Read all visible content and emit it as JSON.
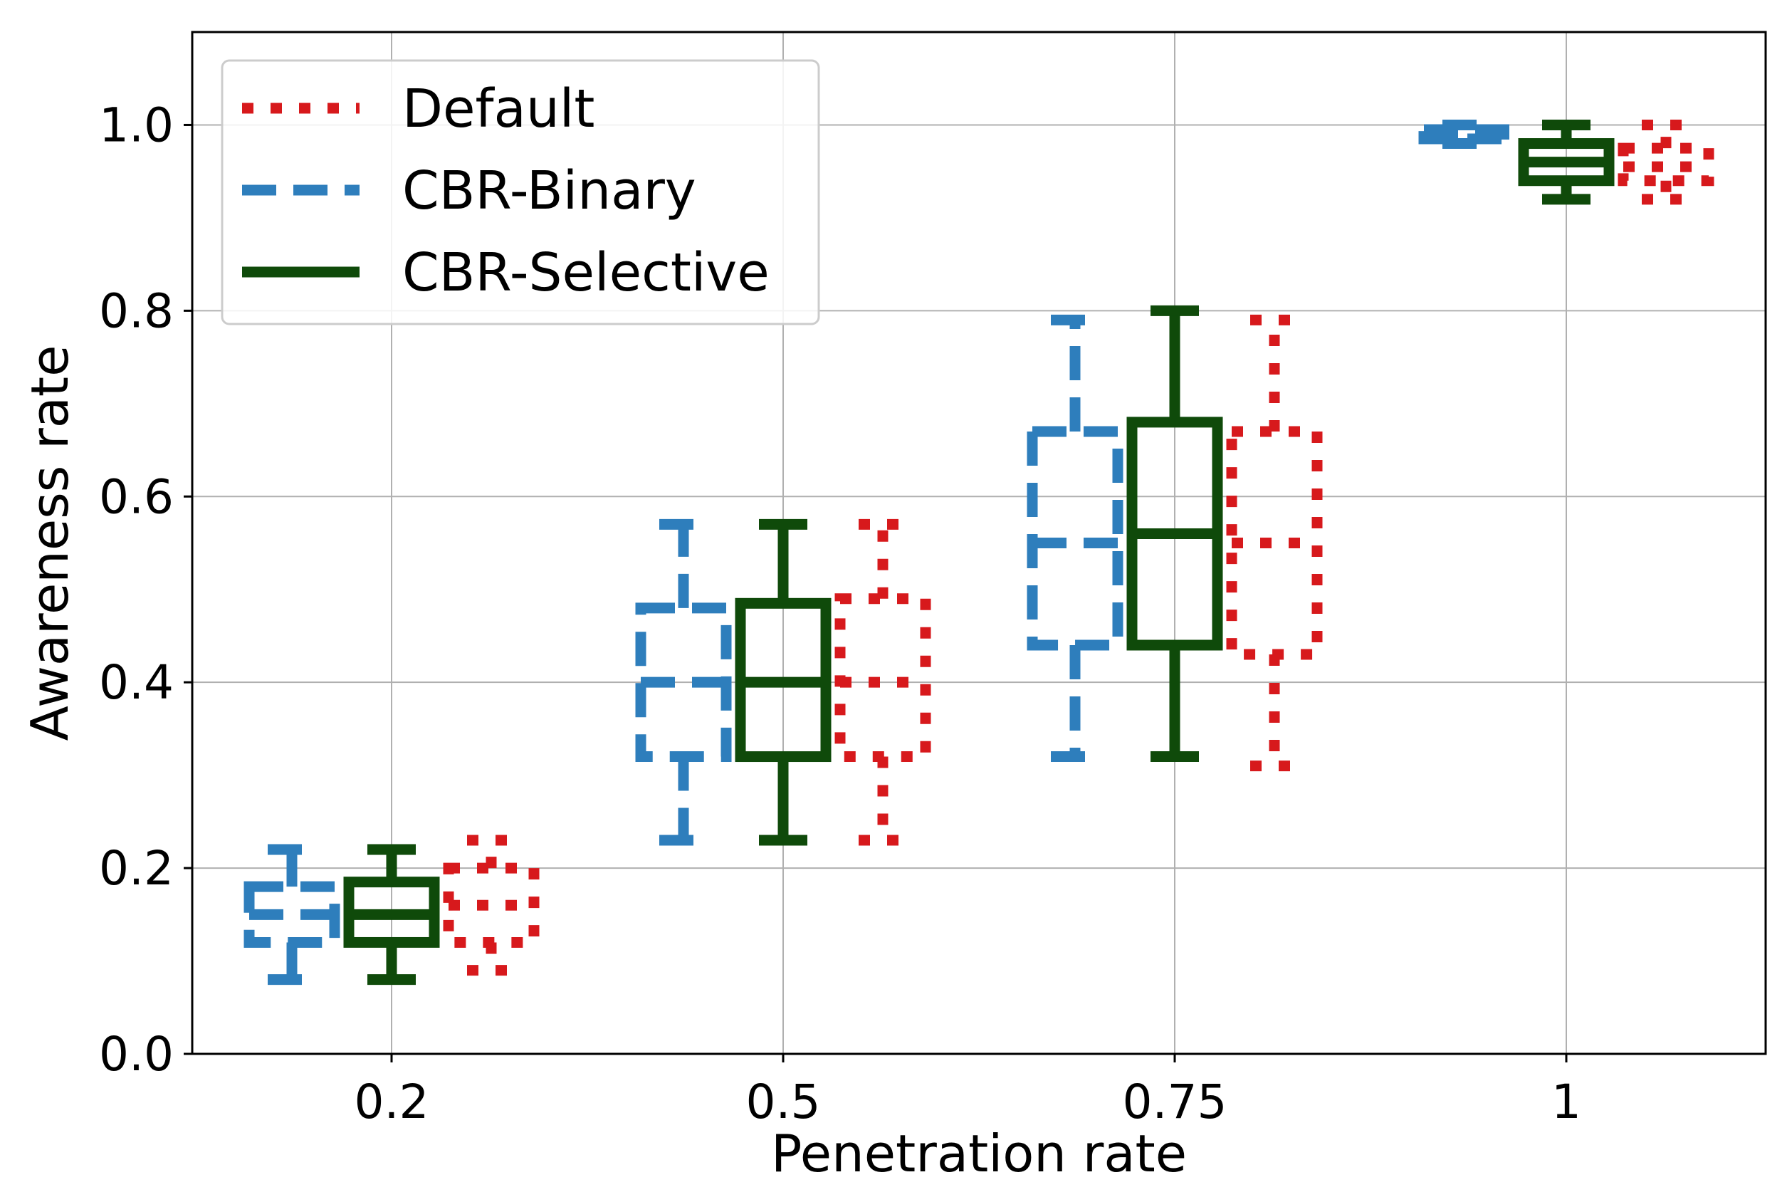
{
  "chart_data": {
    "type": "boxplot",
    "xlabel": "Penetration rate",
    "ylabel": "Awareness rate",
    "categories": [
      "0.2",
      "0.5",
      "0.75",
      "1"
    ],
    "ylim": [
      0.0,
      1.1
    ],
    "yticks": [
      "0.0",
      "0.2",
      "0.4",
      "0.6",
      "0.8",
      "1.0"
    ],
    "ytick_values": [
      0.0,
      0.2,
      0.4,
      0.6,
      0.8,
      1.0
    ],
    "grid": true,
    "legend_position": "top-left",
    "series": [
      {
        "name": "CBR-Binary",
        "color": "#2e7ebc",
        "style": "dashed",
        "boxes": [
          {
            "category": "0.2",
            "whislo": 0.08,
            "q1": 0.12,
            "median": 0.15,
            "q3": 0.18,
            "whishi": 0.22
          },
          {
            "category": "0.5",
            "whislo": 0.23,
            "q1": 0.32,
            "median": 0.4,
            "q3": 0.48,
            "whishi": 0.57
          },
          {
            "category": "0.75",
            "whislo": 0.32,
            "q1": 0.44,
            "median": 0.55,
            "q3": 0.67,
            "whishi": 0.79
          },
          {
            "category": "1",
            "whislo": 0.98,
            "q1": 0.985,
            "median": 0.99,
            "q3": 0.995,
            "whishi": 1.0
          }
        ]
      },
      {
        "name": "CBR-Selective",
        "color": "#0f4a0a",
        "style": "solid",
        "boxes": [
          {
            "category": "0.2",
            "whislo": 0.08,
            "q1": 0.12,
            "median": 0.15,
            "q3": 0.185,
            "whishi": 0.22
          },
          {
            "category": "0.5",
            "whislo": 0.23,
            "q1": 0.32,
            "median": 0.4,
            "q3": 0.485,
            "whishi": 0.57
          },
          {
            "category": "0.75",
            "whislo": 0.32,
            "q1": 0.44,
            "median": 0.56,
            "q3": 0.68,
            "whishi": 0.8
          },
          {
            "category": "1",
            "whislo": 0.92,
            "q1": 0.94,
            "median": 0.96,
            "q3": 0.98,
            "whishi": 1.0
          }
        ]
      },
      {
        "name": "Default",
        "color": "#d7191c",
        "style": "dotted",
        "boxes": [
          {
            "category": "0.2",
            "whislo": 0.09,
            "q1": 0.12,
            "median": 0.16,
            "q3": 0.2,
            "whishi": 0.23
          },
          {
            "category": "0.5",
            "whislo": 0.23,
            "q1": 0.32,
            "median": 0.4,
            "q3": 0.49,
            "whishi": 0.57
          },
          {
            "category": "0.75",
            "whislo": 0.31,
            "q1": 0.43,
            "median": 0.55,
            "q3": 0.67,
            "whishi": 0.79
          },
          {
            "category": "1",
            "whislo": 0.92,
            "q1": 0.94,
            "median": 0.955,
            "q3": 0.975,
            "whishi": 1.0
          }
        ]
      }
    ],
    "legend": [
      {
        "label": "Default",
        "style": "dotted",
        "color": "#d7191c"
      },
      {
        "label": "CBR-Binary",
        "style": "dashed",
        "color": "#2e7ebc"
      },
      {
        "label": "CBR-Selective",
        "style": "solid",
        "color": "#0f4a0a"
      }
    ]
  }
}
